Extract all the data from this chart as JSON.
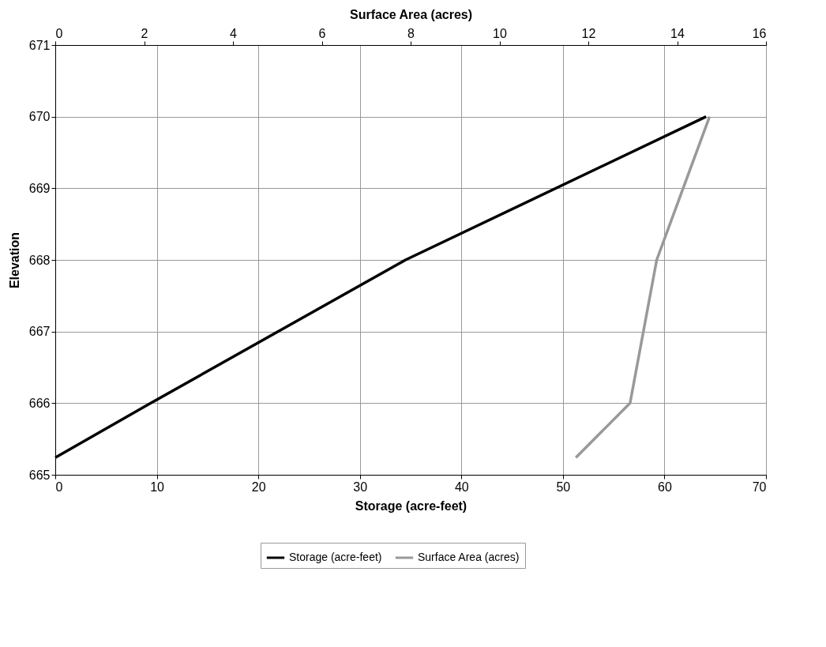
{
  "chart_data": {
    "type": "line",
    "xlabel": "Storage (acre-feet)",
    "ylabel": "Elevation",
    "x2label": "Surface Area (acres)",
    "xlim": [
      0,
      70
    ],
    "xticks": [
      0,
      10,
      20,
      30,
      40,
      50,
      60,
      70
    ],
    "x2lim": [
      0,
      16
    ],
    "x2ticks": [
      0,
      2,
      4,
      6,
      8,
      10,
      12,
      14,
      16
    ],
    "ylim": [
      665,
      671
    ],
    "yticks": [
      665,
      666,
      667,
      668,
      669,
      670,
      671
    ],
    "series": [
      {
        "name": "Storage (acre-feet)",
        "color": "#000000",
        "x": [
          0,
          9.4,
          34.5,
          64.1
        ],
        "values": [
          665.24,
          666,
          668,
          670
        ]
      },
      {
        "name": "Surface Area (acres)",
        "color": "#999999",
        "axis": "x2",
        "x": [
          11.72,
          12.94,
          13.54,
          14.73
        ],
        "values": [
          665.24,
          666,
          668,
          670
        ]
      }
    ],
    "grid": true,
    "legend": "bottom",
    "line_style": "solid",
    "marker": "none"
  }
}
